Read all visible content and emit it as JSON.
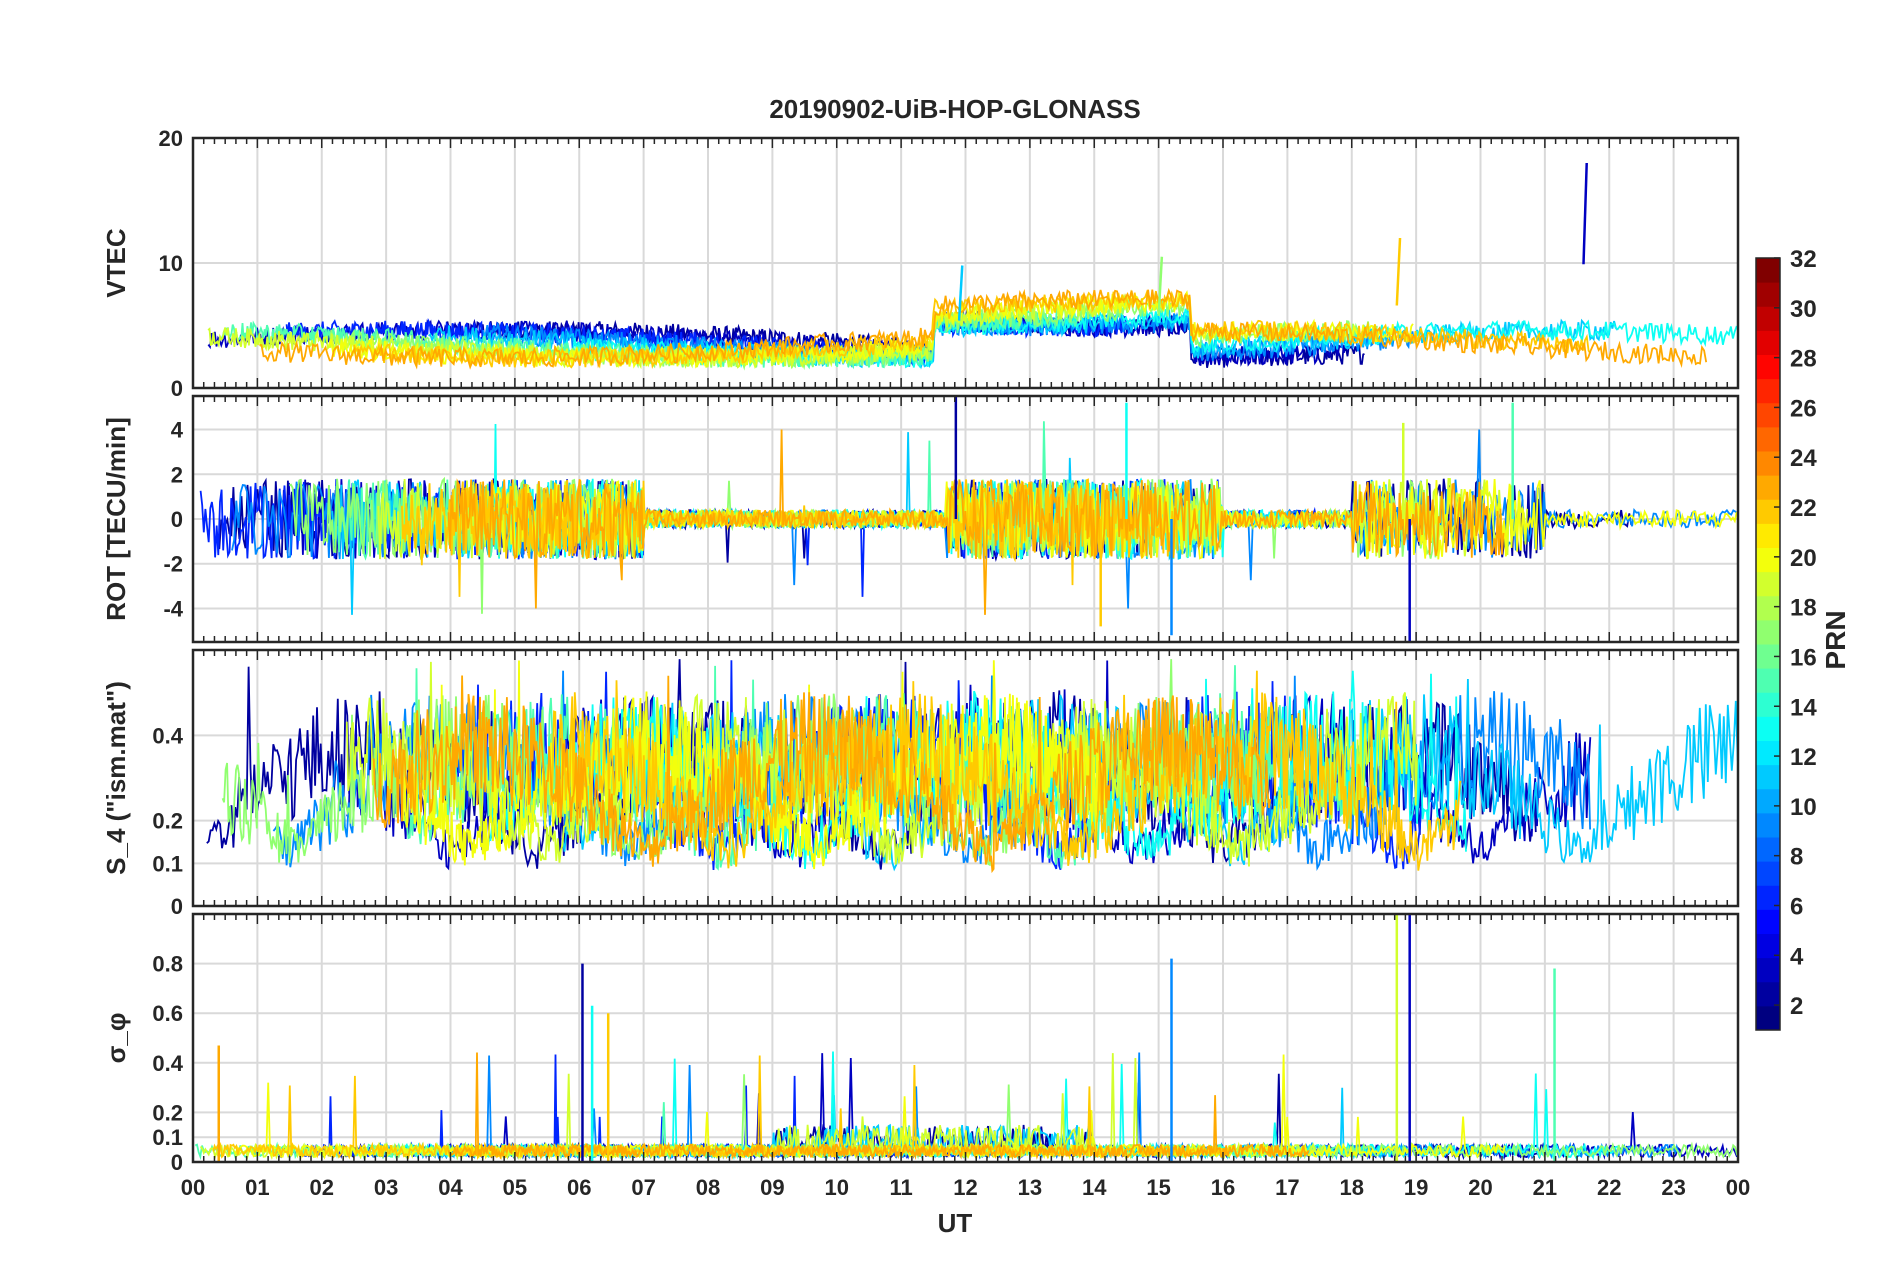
{
  "title": "20190902-UiB-HOP-GLONASS",
  "xlabel": "UT",
  "x_tick_labels": [
    "00",
    "01",
    "02",
    "03",
    "04",
    "05",
    "06",
    "07",
    "08",
    "09",
    "10",
    "11",
    "12",
    "13",
    "14",
    "15",
    "16",
    "17",
    "18",
    "19",
    "20",
    "21",
    "22",
    "23",
    "00"
  ],
  "colorbar": {
    "label": "PRN",
    "range": [
      1,
      32
    ],
    "tick_labels": [
      "2",
      "4",
      "6",
      "8",
      "10",
      "12",
      "14",
      "16",
      "18",
      "20",
      "22",
      "24",
      "26",
      "28",
      "30",
      "32"
    ],
    "colormap": "jet"
  },
  "chart_data": [
    {
      "type": "line",
      "panel": "vtec",
      "ylabel": "VTEC",
      "ylim": [
        0,
        20
      ],
      "yticks": [
        0,
        10,
        20
      ],
      "ytick_labels": [
        "0",
        "10",
        "20"
      ],
      "xlim": [
        0,
        24
      ],
      "grid": true,
      "series_note_values": [
        {
          "prn": 2,
          "base": 3.5,
          "noise": 1.0
        },
        {
          "prn": 6,
          "base": 4.5,
          "noise": 0.8
        },
        {
          "prn": 10,
          "base": 5.0,
          "noise": 0.8
        },
        {
          "prn": 13,
          "base": 5.5,
          "noise": 0.9
        },
        {
          "prn": 16,
          "base": 5.0,
          "noise": 0.7
        },
        {
          "prn": 19,
          "base": 5.5,
          "noise": 0.9
        },
        {
          "prn": 21,
          "base": 5.5,
          "noise": 0.8
        },
        {
          "prn": 23,
          "base": 4.8,
          "noise": 0.7
        }
      ],
      "annotations": [
        {
          "x": 11.9,
          "y": 9.8
        },
        {
          "x": 15.0,
          "y": 10.5
        },
        {
          "x": 18.7,
          "y": 12.0
        },
        {
          "x": 21.6,
          "y": 18.0
        }
      ]
    },
    {
      "type": "line",
      "panel": "rot",
      "ylabel": "ROT [TECU/min]",
      "ylim": [
        -5.5,
        5.5
      ],
      "yticks": [
        -4,
        -2,
        0,
        2,
        4
      ],
      "ytick_labels": [
        "-4",
        "-2",
        "0",
        "2",
        "4"
      ],
      "xlim": [
        0,
        24
      ],
      "grid": true,
      "peaks": [
        {
          "x": 11.85,
          "y": 5.5
        },
        {
          "x": 14.5,
          "y": 5.2
        },
        {
          "x": 14.1,
          "y": -4.8
        },
        {
          "x": 15.2,
          "y": -5.2
        },
        {
          "x": 18.8,
          "y": 4.3
        },
        {
          "x": 18.9,
          "y": -5.5
        },
        {
          "x": 20.5,
          "y": 5.2
        }
      ]
    },
    {
      "type": "line",
      "panel": "s4",
      "ylabel": "S_4 (\"ism.mat\")",
      "ylim": [
        0,
        0.6
      ],
      "yticks": [
        0,
        0.1,
        0.2,
        0.4
      ],
      "ytick_labels": [
        "0",
        "0.1",
        "0.2",
        "0.4"
      ],
      "xlim": [
        0,
        24
      ],
      "grid": true,
      "baseline_range": [
        0.05,
        0.15
      ],
      "peak_max": 0.6
    },
    {
      "type": "line",
      "panel": "sigma_phi",
      "ylabel": "σ_φ",
      "ylim": [
        0,
        1.0
      ],
      "yticks": [
        0,
        0.1,
        0.2,
        0.4,
        0.6,
        0.8
      ],
      "ytick_labels": [
        "0",
        "0.1",
        "0.2",
        "0.4",
        "0.6",
        "0.8"
      ],
      "xlim": [
        0,
        24
      ],
      "grid": true,
      "peaks": [
        {
          "x": 6.05,
          "y": 0.8
        },
        {
          "x": 6.2,
          "y": 0.63
        },
        {
          "x": 6.45,
          "y": 0.6
        },
        {
          "x": 15.2,
          "y": 0.82
        },
        {
          "x": 18.7,
          "y": 1.0
        },
        {
          "x": 18.9,
          "y": 1.0
        },
        {
          "x": 21.15,
          "y": 0.78
        },
        {
          "x": 0.4,
          "y": 0.47
        }
      ]
    }
  ]
}
